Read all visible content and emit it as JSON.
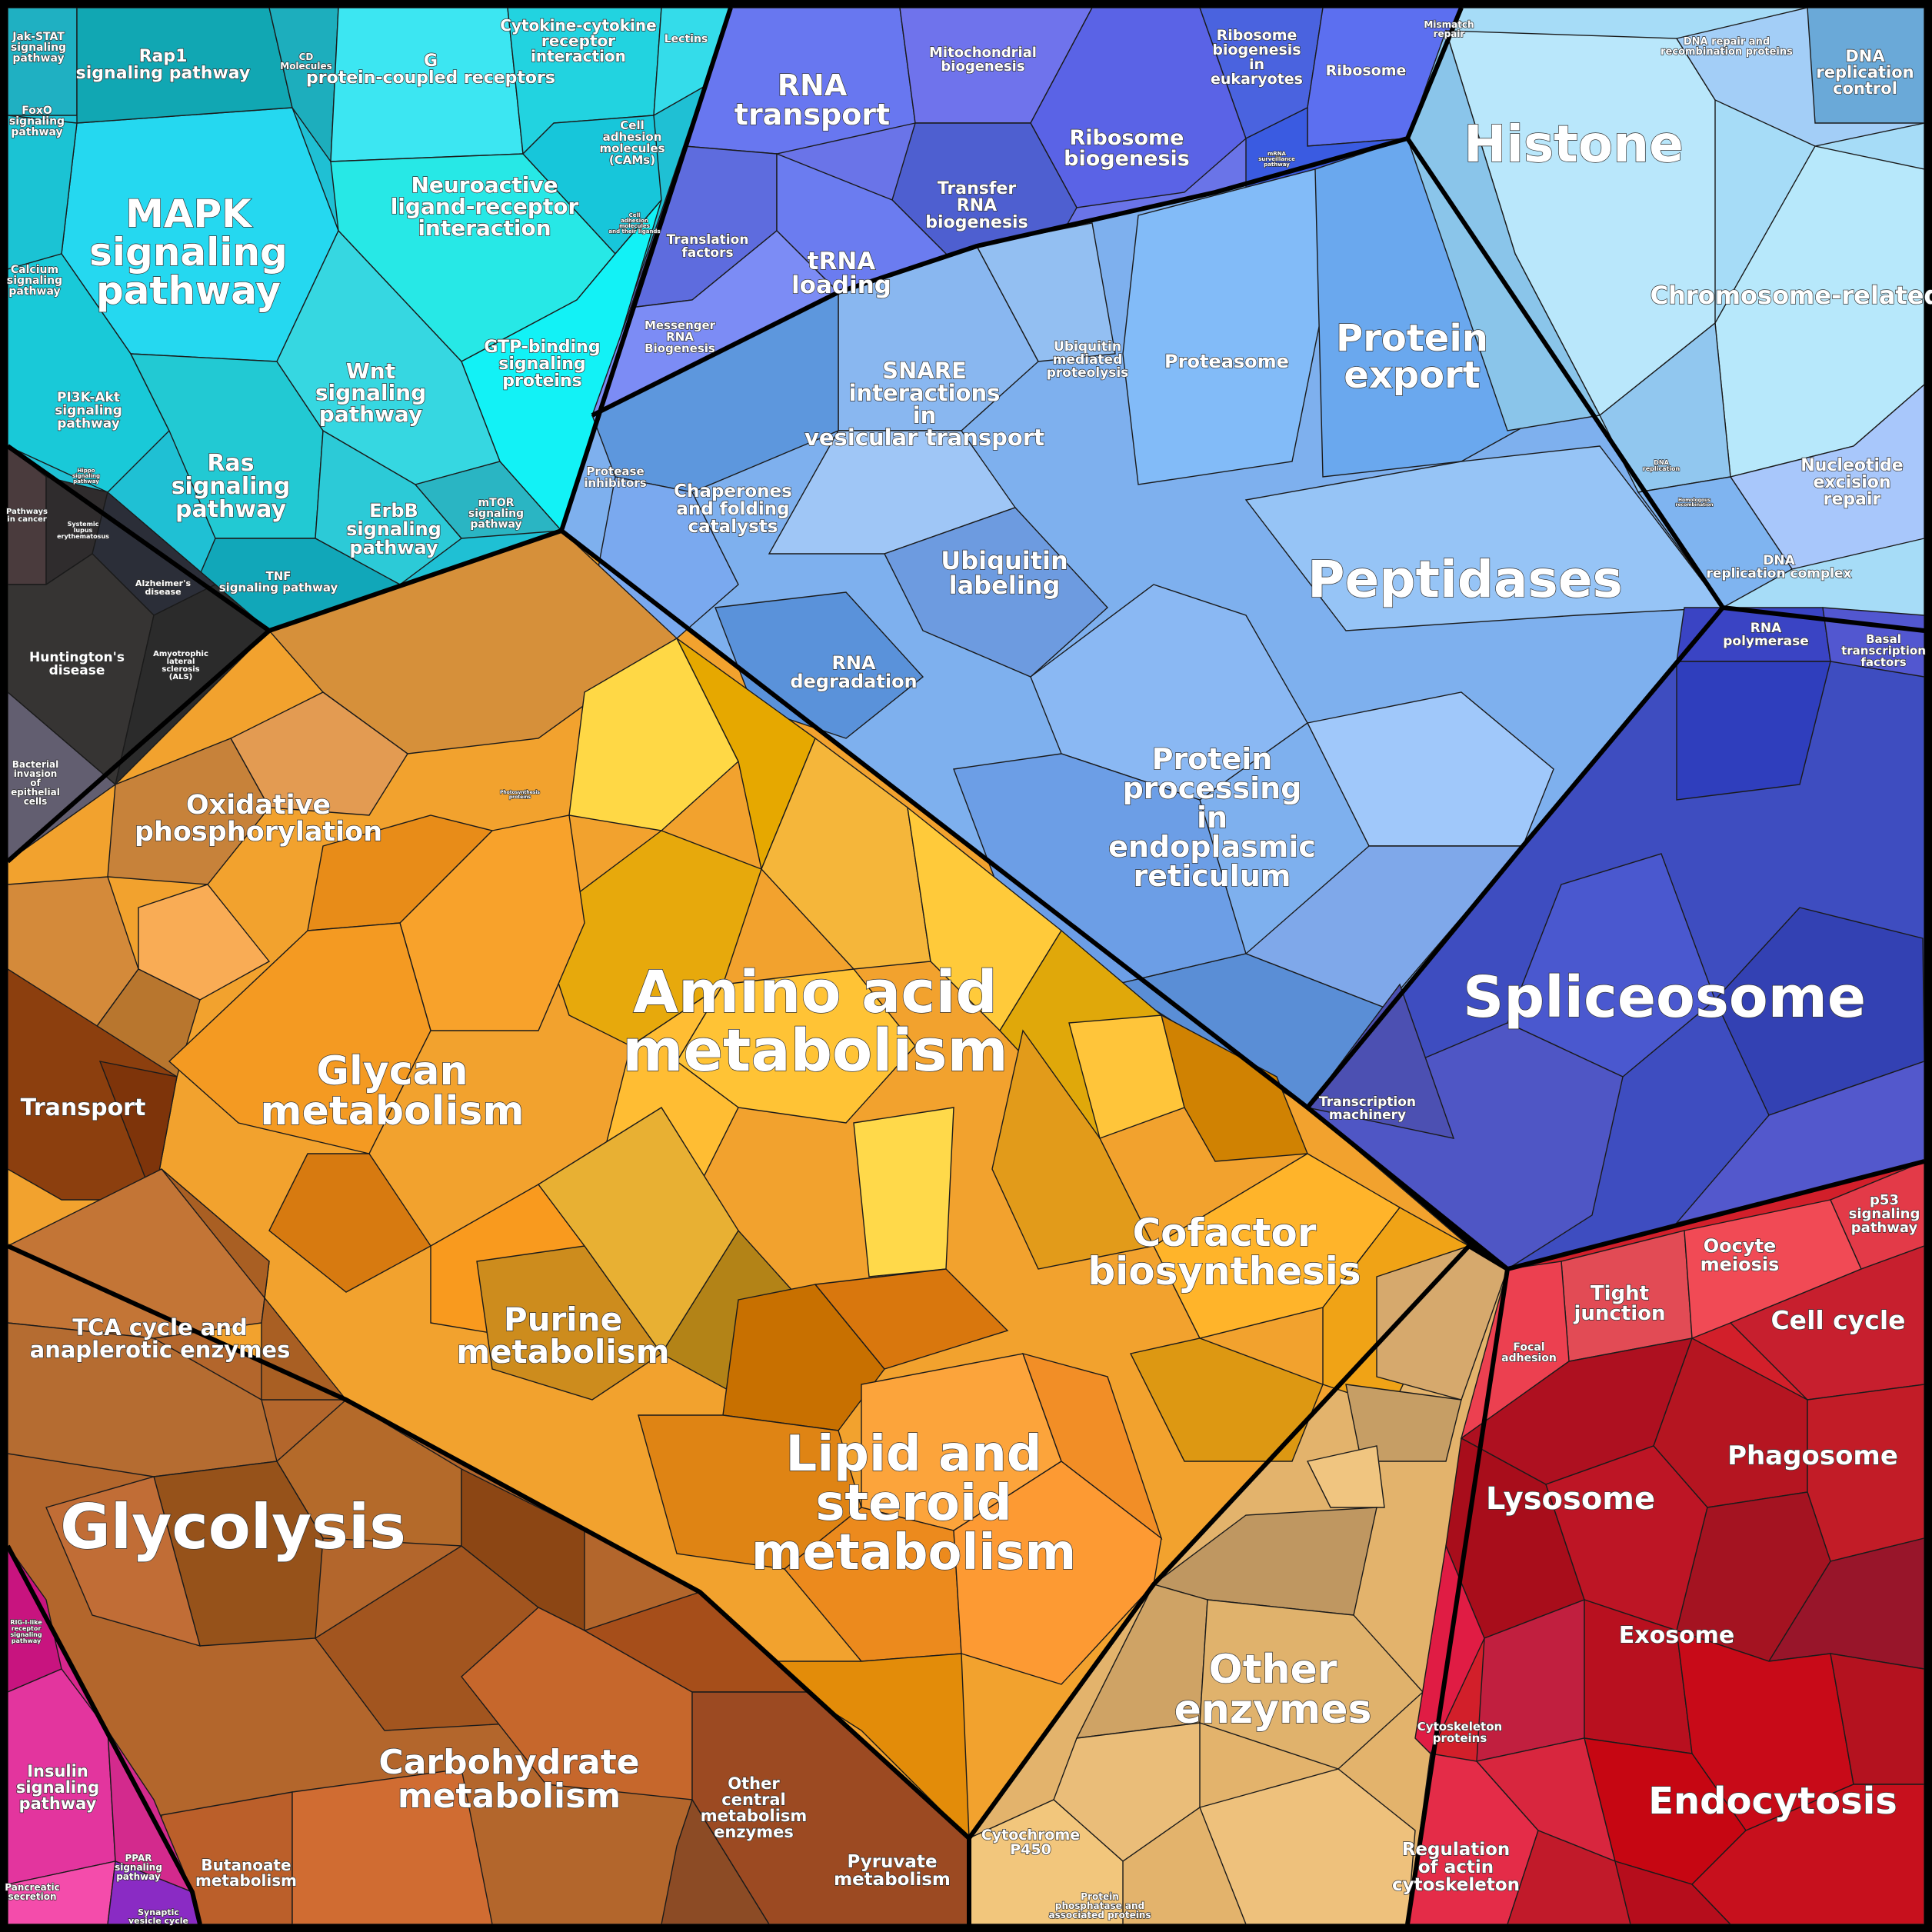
{
  "regions": {
    "signaling": {
      "color": "#19c3d6",
      "labels": {
        "jak_stat": "Jak-STAT signaling pathway",
        "rap1": "Rap1 signaling pathway",
        "cd_molecules": "CD Molecules",
        "gpcr": "G protein-coupled receptors",
        "cytokine": "Cytokine-cytokine receptor interaction",
        "lectins": "Lectins",
        "foxo": "FoxO signaling pathway",
        "mapk": "MAPK signaling pathway",
        "neuroactive": "Neuroactive ligand-receptor interaction",
        "cams": "Cell adhesion molecules (CAMs)",
        "cell_ext": "Cell adhesion molecules and their ligands",
        "calcium": "Calcium signaling pathway",
        "wnt": "Wnt signaling pathway",
        "gtp": "GTP-binding signaling proteins",
        "pi3k": "PI3K-Akt signaling pathway",
        "ras": "Ras signaling pathway",
        "hippo": "Hippo signaling pathway",
        "erbb": "ErbB signaling pathway",
        "mtor": "mTOR signaling pathway",
        "tnf": "TNF signaling pathway"
      }
    },
    "disease": {
      "color": "#3a3433",
      "labels": {
        "pathways_cancer": "Pathways in cancer",
        "sle": "Systemic lupus erythematosus",
        "alzheimers": "Alzheimer's disease",
        "huntingtons": "Huntington's disease",
        "als": "Amyotrophic lateral sclerosis (ALS)",
        "bacterial": "Bacterial invasion of epithelial cells"
      }
    },
    "genetic": {
      "color": "#6470e8",
      "labels": {
        "rna_transport": "RNA transport",
        "mito_biogenesis": "Mitochondrial biogenesis",
        "ribosome_biogenesis_euk": "Ribosome biogenesis in eukaryotes",
        "ribosome": "Ribosome",
        "ribosome_biogenesis": "Ribosome biogenesis",
        "transfer_rna": "Transfer RNA biogenesis",
        "translation_factors": "Translation factors",
        "trna_loading": "tRNA loading",
        "mrna_surveillance": "mRNA surveillance pathway",
        "messenger_rna": "Messenger RNA Biogenesis"
      }
    },
    "folding": {
      "color": "#7fb1ee",
      "labels": {
        "snare": "SNARE interactions in vesicular transport",
        "ubiquitin_proteolysis": "Ubiquitin mediated proteolysis",
        "proteasome": "Proteasome",
        "protein_export": "Protein export",
        "protease_inhibitors": "Protease inhibitors",
        "chaperones": "Chaperones and folding catalysts",
        "ubiquitin_labeling": "Ubiquitin labeling",
        "peptidases": "Peptidases",
        "rna_degradation": "RNA degradation",
        "protein_er": "Protein processing in endoplasmic reticulum"
      }
    },
    "replication": {
      "color": "#9fd8f6",
      "labels": {
        "mismatch": "Mismatch repair",
        "dna_recomb": "DNA repair and recombination proteins",
        "dna_rep_control": "DNA replication control",
        "histone": "Histone",
        "chromosome": "Chromosome-related",
        "dna_replication": "DNA replication",
        "homologous": "Homologous recombination",
        "nucleotide_excision": "Nucleotide excision repair",
        "dna_rep_complex": "DNA replication complex"
      }
    },
    "transcription": {
      "color": "#3d4cbe",
      "labels": {
        "rna_polymerase": "RNA polymerase",
        "basal": "Basal transcription factors",
        "spliceosome": "Spliceosome",
        "transcription_machinery": "Transcription machinery"
      }
    },
    "metabolism_orange": {
      "color": "#f0a028",
      "labels": {
        "oxphos": "Oxidative phosphorylation",
        "photosynthesis": "Photosynthesis proteins",
        "amino_acid": "Amino acid metabolism",
        "glycan": "Glycan metabolism",
        "purine": "Purine metabolism",
        "cofactor": "Cofactor biosynthesis",
        "lipid": "Lipid and steroid metabolism",
        "transport": "Transport"
      }
    },
    "metabolism_brown": {
      "color": "#b0642a",
      "labels": {
        "tca": "TCA cycle and anaplerotic enzymes",
        "glycolysis": "Glycolysis",
        "carbohydrate": "Carbohydrate metabolism",
        "other_central": "Other central metabolism enzymes",
        "pyruvate": "Pyruvate metabolism",
        "butanoate": "Butanoate metabolism"
      }
    },
    "other_enzymes": {
      "color": "#e1b26a",
      "labels": {
        "other_enzymes": "Other enzymes",
        "cytochrome": "Cytochrome P450",
        "phosphatase": "Protein phosphatase and associated proteins"
      }
    },
    "cellular": {
      "color": "#d6202a",
      "labels": {
        "p53": "p53 signaling pathway",
        "oocyte": "Oocyte meiosis",
        "tight_junction": "Tight junction",
        "focal_adhesion": "Focal adhesion",
        "cell_cycle": "Cell cycle",
        "phagosome": "Phagosome",
        "lysosome": "Lysosome",
        "exosome": "Exosome",
        "cytoskeleton": "Cytoskeleton proteins",
        "endocytosis": "Endocytosis",
        "actin": "Regulation of actin cytoskeleton"
      }
    },
    "organismal": {
      "color": "#d9258c",
      "labels": {
        "rig": "RIG-I-like receptor signaling pathway",
        "insulin": "Insulin signaling pathway",
        "ppar": "PPAR signaling pathway",
        "pancreatic": "Pancreatic secretion",
        "synaptic": "Synaptic vesicle cycle"
      }
    }
  }
}
